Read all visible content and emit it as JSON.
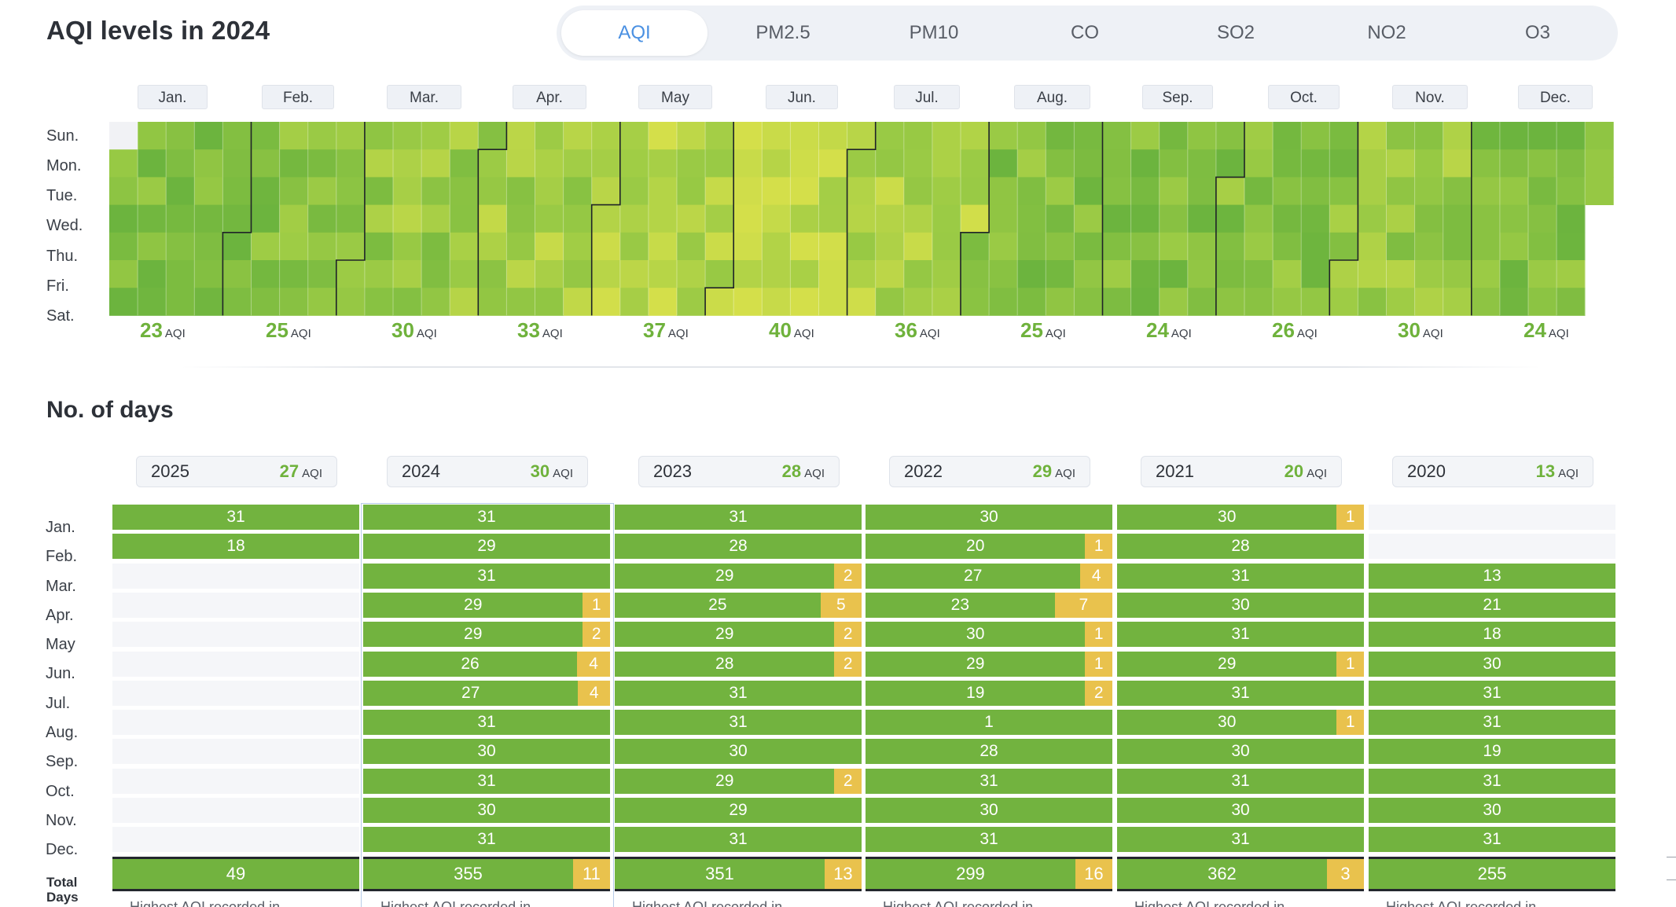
{
  "header": {
    "title": "AQI levels in 2024",
    "tabs": [
      "AQI",
      "PM2.5",
      "PM10",
      "CO",
      "SO2",
      "NO2",
      "O3"
    ],
    "active_tab": "AQI"
  },
  "calendar": {
    "months": [
      "Jan.",
      "Feb.",
      "Mar.",
      "Apr.",
      "May",
      "Jun.",
      "Jul.",
      "Aug.",
      "Sep.",
      "Oct.",
      "Nov.",
      "Dec."
    ],
    "weekdays": [
      "Sun.",
      "Mon.",
      "Tue.",
      "Wed.",
      "Thu.",
      "Fri.",
      "Sat."
    ],
    "monthly_aqi": [
      23,
      25,
      30,
      33,
      37,
      40,
      36,
      25,
      24,
      26,
      30,
      24
    ],
    "aqi_unit": "AQI",
    "year": 2024,
    "colors": {
      "light": "#d4df4a",
      "mid": "#9ccb45",
      "deep": "#6cb43e",
      "empty": "#f1f2f5"
    }
  },
  "days": {
    "title": "No. of days",
    "row_labels": [
      "Jan.",
      "Feb.",
      "Mar.",
      "Apr.",
      "May",
      "Jun.",
      "Jul.",
      "Aug.",
      "Sep.",
      "Oct.",
      "Nov.",
      "Dec."
    ],
    "total_label": "Total Days",
    "aqi_unit": "AQI",
    "under_text": "Highest AQI recorded in",
    "colors": {
      "good": "#72b33f",
      "moderate": "#e9c24d"
    },
    "years": [
      {
        "year": "2025",
        "aqi": "27",
        "selected": false,
        "months": [
          [
            31,
            0
          ],
          [
            18,
            0
          ],
          null,
          null,
          null,
          null,
          null,
          null,
          null,
          null,
          null,
          null
        ],
        "total": [
          49,
          0
        ]
      },
      {
        "year": "2024",
        "aqi": "30",
        "selected": true,
        "months": [
          [
            31,
            0
          ],
          [
            29,
            0
          ],
          [
            31,
            0
          ],
          [
            29,
            1
          ],
          [
            29,
            2
          ],
          [
            26,
            4
          ],
          [
            27,
            4
          ],
          [
            31,
            0
          ],
          [
            30,
            0
          ],
          [
            31,
            0
          ],
          [
            30,
            0
          ],
          [
            31,
            0
          ]
        ],
        "total": [
          355,
          11
        ]
      },
      {
        "year": "2023",
        "aqi": "28",
        "selected": false,
        "months": [
          [
            31,
            0
          ],
          [
            28,
            0
          ],
          [
            29,
            2
          ],
          [
            25,
            5
          ],
          [
            29,
            2
          ],
          [
            28,
            2
          ],
          [
            31,
            0
          ],
          [
            31,
            0
          ],
          [
            30,
            0
          ],
          [
            29,
            2
          ],
          [
            29,
            0
          ],
          [
            31,
            0
          ]
        ],
        "total": [
          351,
          13
        ]
      },
      {
        "year": "2022",
        "aqi": "29",
        "selected": false,
        "months": [
          [
            30,
            0
          ],
          [
            20,
            1
          ],
          [
            27,
            4
          ],
          [
            23,
            7
          ],
          [
            30,
            1
          ],
          [
            29,
            1
          ],
          [
            19,
            2
          ],
          [
            1,
            0
          ],
          [
            28,
            0
          ],
          [
            31,
            0
          ],
          [
            30,
            0
          ],
          [
            31,
            0
          ]
        ],
        "total": [
          299,
          16
        ]
      },
      {
        "year": "2021",
        "aqi": "20",
        "selected": false,
        "months": [
          [
            30,
            1
          ],
          [
            28,
            0
          ],
          [
            31,
            0
          ],
          [
            30,
            0
          ],
          [
            31,
            0
          ],
          [
            29,
            1
          ],
          [
            31,
            0
          ],
          [
            30,
            1
          ],
          [
            30,
            0
          ],
          [
            31,
            0
          ],
          [
            30,
            0
          ],
          [
            31,
            0
          ]
        ],
        "total": [
          362,
          3
        ]
      },
      {
        "year": "2020",
        "aqi": "13",
        "selected": false,
        "months": [
          null,
          null,
          [
            13,
            0
          ],
          [
            21,
            0
          ],
          [
            18,
            0
          ],
          [
            30,
            0
          ],
          [
            31,
            0
          ],
          [
            31,
            0
          ],
          [
            19,
            0
          ],
          [
            31,
            0
          ],
          [
            30,
            0
          ],
          [
            31,
            0
          ]
        ],
        "total": [
          255,
          0
        ]
      }
    ]
  }
}
